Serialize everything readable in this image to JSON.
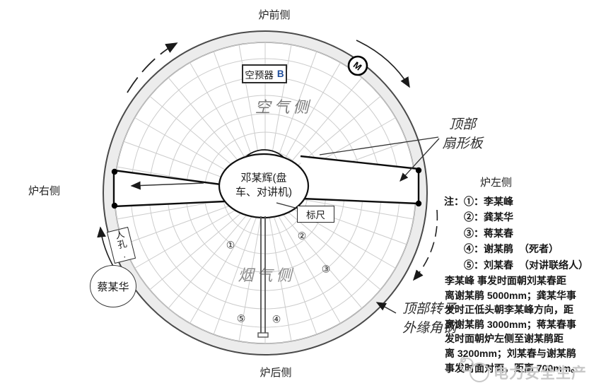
{
  "sides": {
    "front": "炉前侧",
    "right": "炉右侧",
    "left": "炉左侧",
    "back": "炉后侧"
  },
  "diagram": {
    "device": {
      "name": "空预器",
      "unit": "B",
      "unit_color": "#1f4e9c"
    },
    "air_side_label": "空气侧",
    "gas_side_label": "烟气侧",
    "center_bubble": {
      "line1": "邓某辉(盘",
      "line2": "车、对讲机)"
    },
    "ruler_label": "标尺",
    "manhole_label": "人孔.",
    "person_circle_label": "蔡某华",
    "sector_plate_label": {
      "line1": "顶部",
      "line2": "扇形板"
    },
    "rim_steel_label": {
      "line1": "顶部转子",
      "line2": "外缘角钢"
    },
    "motor_symbol": "M",
    "markers": [
      {
        "symbol": "①"
      },
      {
        "symbol": "②"
      },
      {
        "symbol": "③"
      },
      {
        "symbol": "④"
      },
      {
        "symbol": "⑤"
      }
    ]
  },
  "notes": {
    "prefix": "注：",
    "items": [
      {
        "num": "①",
        "sep": "：",
        "name": "李某峰",
        "note": ""
      },
      {
        "num": "②",
        "sep": "：",
        "name": "龚某华",
        "note": ""
      },
      {
        "num": "③",
        "sep": "：",
        "name": "蒋某春",
        "note": ""
      },
      {
        "num": "④",
        "sep": "：",
        "name": "谢某鹃",
        "note": "（死者）"
      },
      {
        "num": "⑤",
        "sep": "：",
        "name": "刘某春",
        "note": "（对讲联络人）"
      }
    ]
  },
  "description_lines": [
    "李某峰 事发时面朝刘某春距",
    "离谢某鹃 5000mm；龚某华事",
    "发时正低头朝李某峰方向，距",
    "离谢某鹃 3000mm；蒋某春事",
    "发时面朝炉左侧至谢某鹃距",
    "离 3200mm；刘某春与谢某鹃",
    "事发时面对面，距离 700mm。"
  ],
  "watermark": {
    "text": "电力安全生产",
    "color": "#c8c8c8"
  }
}
